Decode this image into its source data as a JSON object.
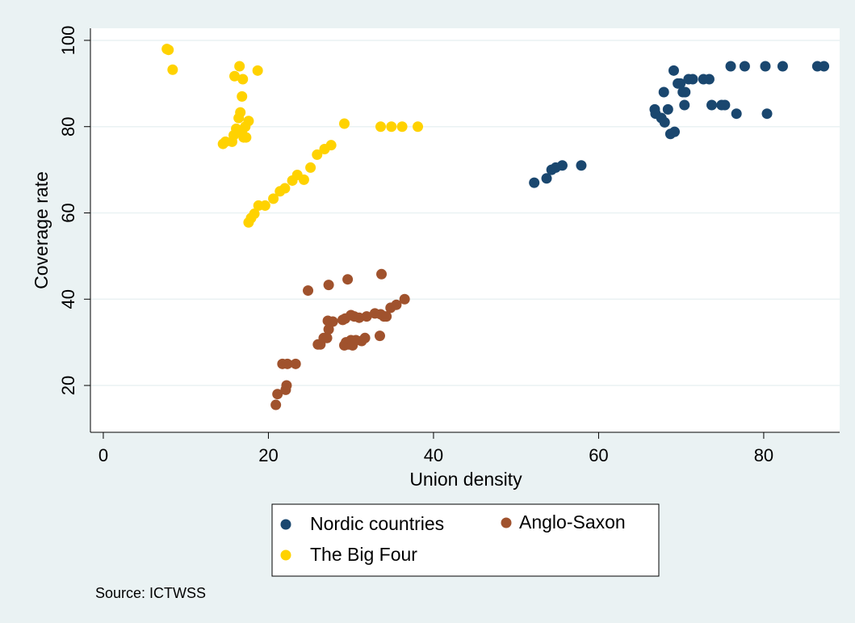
{
  "chart_data": {
    "type": "scatter",
    "xlabel": "Union density",
    "ylabel": "Coverage rate",
    "source": "Source: ICTWSS",
    "xlim": [
      -1.56,
      89.2
    ],
    "ylim": [
      9.14,
      102.8
    ],
    "xticks": [
      0,
      20,
      40,
      60,
      80
    ],
    "yticks": [
      20,
      40,
      60,
      80,
      100
    ],
    "grid": true,
    "series": [
      {
        "name": "Nordic countries",
        "color": "#1a476f",
        "x": [
          52.2,
          53.7,
          54.3,
          54.8,
          55.6,
          57.9,
          66.8,
          66.9,
          67.6,
          67.9,
          68,
          68.4,
          68.7,
          69.1,
          69.2,
          69.6,
          69.9,
          70.2,
          70.4,
          70.5,
          70.9,
          71.4,
          72.7,
          73.4,
          73.7,
          74.9,
          75.3,
          76,
          76.7,
          77.7,
          80.2,
          80.4,
          82.3,
          86.5,
          87.3
        ],
        "values": [
          67,
          68,
          70,
          70.5,
          71,
          71,
          84,
          83,
          82,
          88,
          81,
          84,
          78.3,
          93,
          78.8,
          90,
          90,
          88,
          85,
          88,
          91,
          91,
          91,
          91,
          85,
          85,
          85,
          94,
          83,
          94,
          94,
          83,
          94,
          94,
          94
        ]
      },
      {
        "name": "Anglo-Saxon",
        "color": "#a0522d",
        "x": [
          20.9,
          21.1,
          21.7,
          22.1,
          22.2,
          22.3,
          23.3,
          24.8,
          26,
          26.3,
          26.7,
          27.1,
          27.2,
          27.3,
          27.3,
          27.8,
          29,
          29.2,
          29.3,
          29.4,
          29.6,
          29.7,
          30,
          30,
          30.2,
          30.4,
          30.6,
          31,
          31.3,
          31.7,
          31.9,
          32.9,
          33.5,
          33.6,
          33.7,
          34,
          34.3,
          34.8,
          35.5,
          36.5
        ],
        "values": [
          15.5,
          18,
          25,
          19,
          20,
          25,
          25,
          42,
          29.5,
          29.5,
          31,
          31,
          35,
          33,
          43.3,
          34.8,
          35.2,
          29.3,
          35.5,
          30,
          44.6,
          29.5,
          36.3,
          30.5,
          29.3,
          36,
          30.5,
          35.7,
          30.3,
          31,
          36,
          36.7,
          31.5,
          36.5,
          45.8,
          36,
          36,
          38,
          38.7,
          40
        ]
      },
      {
        "name": "The Big Four",
        "color": "#ffd200",
        "x": [
          7.7,
          7.9,
          8.4,
          14.5,
          14.8,
          15.6,
          15.8,
          15.9,
          16.1,
          16.4,
          16.5,
          16.6,
          16.8,
          16.8,
          16.9,
          17,
          17.2,
          17.3,
          17.6,
          17.6,
          17.9,
          18.3,
          18.7,
          18.8,
          19.6,
          20.6,
          21.4,
          22,
          22.9,
          23.5,
          24.3,
          25.1,
          25.9,
          26.8,
          27.6,
          29.2,
          33.6,
          34.9,
          36.2,
          38.1
        ],
        "values": [
          98,
          97.8,
          93.2,
          76,
          76.5,
          76.5,
          78,
          91.7,
          79.5,
          82,
          94,
          83.3,
          87,
          79,
          91,
          77.5,
          80,
          77.5,
          81.3,
          57.8,
          58.8,
          59.8,
          93,
          61.7,
          61.7,
          63.3,
          65,
          65.7,
          67.5,
          68.8,
          67.7,
          70.5,
          73.5,
          74.8,
          75.7,
          80.7,
          80,
          80,
          80,
          80
        ]
      }
    ]
  }
}
